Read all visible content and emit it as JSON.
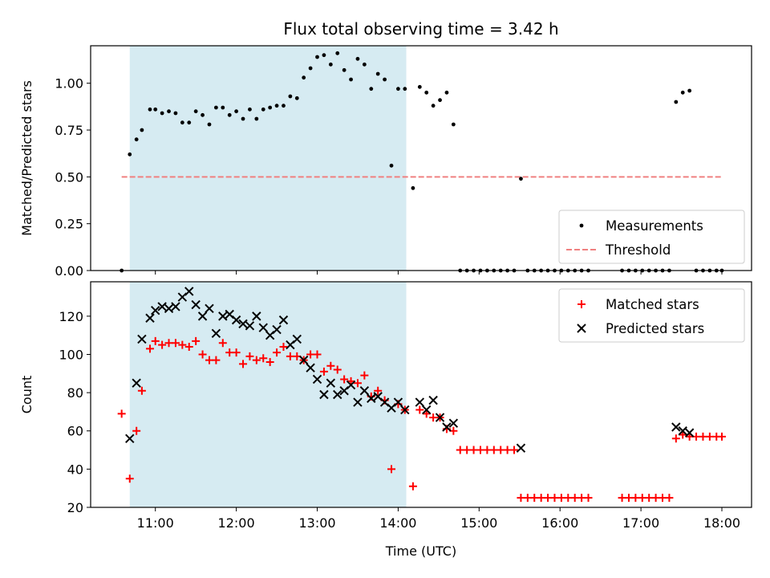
{
  "chart_data": [
    {
      "type": "scatter",
      "title": "Flux total observing time = 3.42 h",
      "xlabel": "",
      "ylabel": "Matched/Predicted stars",
      "x_ticks": [
        "11:00",
        "12:00",
        "13:00",
        "14:00",
        "15:00",
        "16:00",
        "17:00",
        "18:00"
      ],
      "xlim": [
        "10:12",
        "18:22"
      ],
      "ylim": [
        0,
        1.2
      ],
      "y_ticks": [
        "0.00",
        "0.25",
        "0.50",
        "0.75",
        "1.00"
      ],
      "y_tick_values": [
        0,
        0.25,
        0.5,
        0.75,
        1.0
      ],
      "shaded_span": {
        "start": "10:41",
        "end": "14:06",
        "color": "#add8e6"
      },
      "threshold": {
        "name": "Threshold",
        "value": 0.5,
        "from": "10:35",
        "to": "18:00",
        "color": "#f08080"
      },
      "legend": {
        "placement": "lower-right",
        "entries": [
          "Measurements",
          "Threshold"
        ]
      },
      "series": [
        {
          "name": "Measurements",
          "marker": "dot",
          "color": "#000000",
          "points": [
            [
              "10:35",
              0.0
            ],
            [
              "10:41",
              0.62
            ],
            [
              "10:46",
              0.7
            ],
            [
              "10:50",
              0.75
            ],
            [
              "10:56",
              0.86
            ],
            [
              "11:00",
              0.86
            ],
            [
              "11:05",
              0.84
            ],
            [
              "11:10",
              0.85
            ],
            [
              "11:15",
              0.84
            ],
            [
              "11:20",
              0.79
            ],
            [
              "11:25",
              0.79
            ],
            [
              "11:30",
              0.85
            ],
            [
              "11:35",
              0.83
            ],
            [
              "11:40",
              0.78
            ],
            [
              "11:45",
              0.87
            ],
            [
              "11:50",
              0.87
            ],
            [
              "11:55",
              0.83
            ],
            [
              "12:00",
              0.85
            ],
            [
              "12:05",
              0.81
            ],
            [
              "12:10",
              0.86
            ],
            [
              "12:15",
              0.81
            ],
            [
              "12:20",
              0.86
            ],
            [
              "12:25",
              0.87
            ],
            [
              "12:30",
              0.88
            ],
            [
              "12:35",
              0.88
            ],
            [
              "12:40",
              0.93
            ],
            [
              "12:45",
              0.92
            ],
            [
              "12:50",
              1.03
            ],
            [
              "12:55",
              1.08
            ],
            [
              "13:00",
              1.14
            ],
            [
              "13:05",
              1.15
            ],
            [
              "13:10",
              1.1
            ],
            [
              "13:15",
              1.16
            ],
            [
              "13:20",
              1.07
            ],
            [
              "13:25",
              1.02
            ],
            [
              "13:30",
              1.13
            ],
            [
              "13:35",
              1.1
            ],
            [
              "13:40",
              0.97
            ],
            [
              "13:45",
              1.05
            ],
            [
              "13:50",
              1.02
            ],
            [
              "13:55",
              0.56
            ],
            [
              "14:00",
              0.97
            ],
            [
              "14:05",
              0.97
            ],
            [
              "14:11",
              0.44
            ],
            [
              "14:16",
              0.98
            ],
            [
              "14:21",
              0.95
            ],
            [
              "14:26",
              0.88
            ],
            [
              "14:31",
              0.91
            ],
            [
              "14:36",
              0.95
            ],
            [
              "14:41",
              0.78
            ],
            [
              "14:46",
              0.0
            ],
            [
              "14:51",
              0.0
            ],
            [
              "14:56",
              0.0
            ],
            [
              "15:01",
              0.0
            ],
            [
              "15:06",
              0.0
            ],
            [
              "15:11",
              0.0
            ],
            [
              "15:16",
              0.0
            ],
            [
              "15:21",
              0.0
            ],
            [
              "15:26",
              0.0
            ],
            [
              "15:31",
              0.49
            ],
            [
              "15:36",
              0.0
            ],
            [
              "15:41",
              0.0
            ],
            [
              "15:46",
              0.0
            ],
            [
              "15:51",
              0.0
            ],
            [
              "15:56",
              0.0
            ],
            [
              "16:01",
              0.0
            ],
            [
              "16:06",
              0.0
            ],
            [
              "16:11",
              0.0
            ],
            [
              "16:16",
              0.0
            ],
            [
              "16:21",
              0.0
            ],
            [
              "16:46",
              0.0
            ],
            [
              "16:51",
              0.0
            ],
            [
              "16:56",
              0.0
            ],
            [
              "17:01",
              0.0
            ],
            [
              "17:06",
              0.0
            ],
            [
              "17:11",
              0.0
            ],
            [
              "17:16",
              0.0
            ],
            [
              "17:21",
              0.0
            ],
            [
              "17:26",
              0.9
            ],
            [
              "17:31",
              0.95
            ],
            [
              "17:36",
              0.96
            ],
            [
              "17:41",
              0.0
            ],
            [
              "17:46",
              0.0
            ],
            [
              "17:51",
              0.0
            ],
            [
              "17:56",
              0.0
            ],
            [
              "18:00",
              0.0
            ]
          ]
        }
      ]
    },
    {
      "type": "scatter",
      "xlabel": "Time (UTC)",
      "ylabel": "Count",
      "x_ticks": [
        "11:00",
        "12:00",
        "13:00",
        "14:00",
        "15:00",
        "16:00",
        "17:00",
        "18:00"
      ],
      "xlim": [
        "10:12",
        "18:22"
      ],
      "ylim": [
        20,
        138
      ],
      "y_ticks": [
        "20",
        "40",
        "60",
        "80",
        "100",
        "120"
      ],
      "y_tick_values": [
        20,
        40,
        60,
        80,
        100,
        120
      ],
      "shaded_span": {
        "start": "10:41",
        "end": "14:06",
        "color": "#add8e6"
      },
      "legend": {
        "placement": "upper-right",
        "entries": [
          "Matched stars",
          "Predicted stars"
        ]
      },
      "series": [
        {
          "name": "Matched stars",
          "marker": "plus",
          "color": "#ff0000",
          "points": [
            [
              "10:35",
              69
            ],
            [
              "10:41",
              35
            ],
            [
              "10:46",
              60
            ],
            [
              "10:50",
              81
            ],
            [
              "10:56",
              103
            ],
            [
              "11:00",
              107
            ],
            [
              "11:05",
              105
            ],
            [
              "11:10",
              106
            ],
            [
              "11:15",
              106
            ],
            [
              "11:20",
              105
            ],
            [
              "11:25",
              104
            ],
            [
              "11:30",
              107
            ],
            [
              "11:35",
              100
            ],
            [
              "11:40",
              97
            ],
            [
              "11:45",
              97
            ],
            [
              "11:50",
              106
            ],
            [
              "11:55",
              101
            ],
            [
              "12:00",
              101
            ],
            [
              "12:05",
              95
            ],
            [
              "12:10",
              99
            ],
            [
              "12:15",
              97
            ],
            [
              "12:20",
              98
            ],
            [
              "12:25",
              96
            ],
            [
              "12:30",
              101
            ],
            [
              "12:35",
              104
            ],
            [
              "12:40",
              99
            ],
            [
              "12:45",
              99
            ],
            [
              "12:50",
              97
            ],
            [
              "12:55",
              100
            ],
            [
              "13:00",
              100
            ],
            [
              "13:05",
              91
            ],
            [
              "13:10",
              94
            ],
            [
              "13:15",
              92
            ],
            [
              "13:20",
              87
            ],
            [
              "13:25",
              86
            ],
            [
              "13:30",
              85
            ],
            [
              "13:35",
              89
            ],
            [
              "13:40",
              78
            ],
            [
              "13:45",
              81
            ],
            [
              "13:50",
              76
            ],
            [
              "13:55",
              40
            ],
            [
              "14:00",
              74
            ],
            [
              "14:05",
              71
            ],
            [
              "14:11",
              31
            ],
            [
              "14:16",
              71
            ],
            [
              "14:21",
              69
            ],
            [
              "14:26",
              67
            ],
            [
              "14:31",
              67
            ],
            [
              "14:36",
              61
            ],
            [
              "14:41",
              60
            ],
            [
              "14:46",
              50
            ],
            [
              "14:51",
              50
            ],
            [
              "14:56",
              50
            ],
            [
              "15:01",
              50
            ],
            [
              "15:06",
              50
            ],
            [
              "15:11",
              50
            ],
            [
              "15:16",
              50
            ],
            [
              "15:21",
              50
            ],
            [
              "15:26",
              50
            ],
            [
              "15:31",
              25
            ],
            [
              "15:36",
              25
            ],
            [
              "15:41",
              25
            ],
            [
              "15:46",
              25
            ],
            [
              "15:51",
              25
            ],
            [
              "15:56",
              25
            ],
            [
              "16:01",
              25
            ],
            [
              "16:06",
              25
            ],
            [
              "16:11",
              25
            ],
            [
              "16:16",
              25
            ],
            [
              "16:21",
              25
            ],
            [
              "16:46",
              25
            ],
            [
              "16:51",
              25
            ],
            [
              "16:56",
              25
            ],
            [
              "17:01",
              25
            ],
            [
              "17:06",
              25
            ],
            [
              "17:11",
              25
            ],
            [
              "17:16",
              25
            ],
            [
              "17:21",
              25
            ],
            [
              "17:26",
              56
            ],
            [
              "17:31",
              58
            ],
            [
              "17:36",
              57
            ],
            [
              "17:41",
              57
            ],
            [
              "17:46",
              57
            ],
            [
              "17:51",
              57
            ],
            [
              "17:56",
              57
            ],
            [
              "18:00",
              57
            ]
          ]
        },
        {
          "name": "Predicted stars",
          "marker": "x",
          "color": "#000000",
          "points": [
            [
              "10:41",
              56
            ],
            [
              "10:46",
              85
            ],
            [
              "10:50",
              108
            ],
            [
              "10:56",
              119
            ],
            [
              "11:00",
              123
            ],
            [
              "11:05",
              125
            ],
            [
              "11:10",
              124
            ],
            [
              "11:15",
              125
            ],
            [
              "11:20",
              130
            ],
            [
              "11:25",
              133
            ],
            [
              "11:30",
              126
            ],
            [
              "11:35",
              120
            ],
            [
              "11:40",
              124
            ],
            [
              "11:45",
              111
            ],
            [
              "11:50",
              120
            ],
            [
              "11:55",
              121
            ],
            [
              "12:00",
              118
            ],
            [
              "12:05",
              116
            ],
            [
              "12:10",
              115
            ],
            [
              "12:15",
              120
            ],
            [
              "12:20",
              114
            ],
            [
              "12:25",
              110
            ],
            [
              "12:30",
              113
            ],
            [
              "12:35",
              118
            ],
            [
              "12:40",
              105
            ],
            [
              "12:45",
              108
            ],
            [
              "12:50",
              97
            ],
            [
              "12:55",
              93
            ],
            [
              "13:00",
              87
            ],
            [
              "13:05",
              79
            ],
            [
              "13:10",
              85
            ],
            [
              "13:15",
              79
            ],
            [
              "13:20",
              81
            ],
            [
              "13:25",
              84
            ],
            [
              "13:30",
              75
            ],
            [
              "13:35",
              81
            ],
            [
              "13:40",
              77
            ],
            [
              "13:45",
              78
            ],
            [
              "13:50",
              75
            ],
            [
              "13:55",
              72
            ],
            [
              "14:00",
              75
            ],
            [
              "14:05",
              71
            ],
            [
              "14:16",
              75
            ],
            [
              "14:21",
              71
            ],
            [
              "14:26",
              76
            ],
            [
              "14:31",
              67
            ],
            [
              "14:36",
              62
            ],
            [
              "14:41",
              64
            ],
            [
              "15:31",
              51
            ],
            [
              "17:26",
              62
            ],
            [
              "17:31",
              60
            ],
            [
              "17:36",
              59
            ]
          ]
        }
      ]
    }
  ]
}
